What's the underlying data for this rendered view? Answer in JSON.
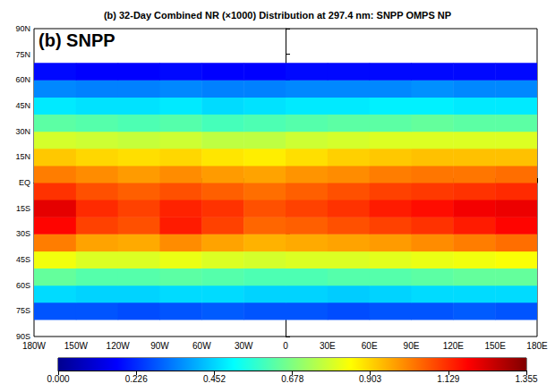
{
  "chart_data": {
    "type": "map_heatmap",
    "title": "(b) 32-Day Combined NR (×1000) Distribution at 297.4 nm: SNPP OMPS NP",
    "panel_label": "(b) SNPP",
    "xlim": [
      -180,
      180
    ],
    "xticks": [
      {
        "value": -180,
        "label": "180W"
      },
      {
        "value": -150,
        "label": "150W"
      },
      {
        "value": -120,
        "label": "120W"
      },
      {
        "value": -90,
        "label": "90W"
      },
      {
        "value": -60,
        "label": "60W"
      },
      {
        "value": -30,
        "label": "30W"
      },
      0,
      {
        "value": 30,
        "label": "30E"
      },
      {
        "value": 60,
        "label": "60E"
      },
      {
        "value": 90,
        "label": "90E"
      },
      {
        "value": 120,
        "label": "120E"
      },
      {
        "value": 150,
        "label": "150E"
      },
      {
        "value": 180,
        "label": "180E"
      }
    ],
    "ylim": [
      -90,
      90
    ],
    "yticks": [
      {
        "value": -90,
        "label": "90S"
      },
      {
        "value": -75,
        "label": "75S"
      },
      {
        "value": -60,
        "label": "60S"
      },
      {
        "value": -45,
        "label": "45S"
      },
      {
        "value": -30,
        "label": "30S"
      },
      {
        "value": -15,
        "label": "15S"
      },
      {
        "value": 0,
        "label": "EQ"
      },
      {
        "value": 15,
        "label": "15N"
      },
      {
        "value": 30,
        "label": "30N"
      },
      {
        "value": 45,
        "label": "45N"
      },
      {
        "value": 60,
        "label": "60N"
      },
      {
        "value": 75,
        "label": "75N"
      },
      {
        "value": 90,
        "label": "90N"
      }
    ],
    "cell_lon": [
      -165,
      -135,
      -105,
      -75,
      -45,
      -15,
      15,
      45,
      75,
      105,
      135,
      165
    ],
    "cell_lat": [
      -75,
      -65,
      -55,
      -45,
      -35,
      -25,
      -15,
      -5,
      5,
      15,
      25,
      35,
      45,
      55,
      65
    ],
    "cells": [
      [
        0.28,
        0.28,
        0.27,
        0.28,
        0.29,
        0.28,
        0.28,
        0.27,
        0.28,
        0.28,
        0.29,
        0.28
      ],
      [
        0.46,
        0.45,
        0.45,
        0.46,
        0.46,
        0.45,
        0.45,
        0.44,
        0.45,
        0.46,
        0.46,
        0.46
      ],
      [
        0.64,
        0.62,
        0.62,
        0.63,
        0.62,
        0.61,
        0.61,
        0.62,
        0.62,
        0.63,
        0.64,
        0.64
      ],
      [
        0.83,
        0.8,
        0.8,
        0.82,
        0.8,
        0.79,
        0.8,
        0.8,
        0.81,
        0.82,
        0.83,
        0.84
      ],
      [
        1.02,
        0.97,
        0.96,
        1.0,
        0.97,
        0.95,
        0.96,
        0.97,
        0.98,
        1.0,
        1.02,
        1.04
      ],
      [
        1.18,
        1.1,
        1.08,
        1.15,
        1.1,
        1.05,
        1.06,
        1.08,
        1.1,
        1.12,
        1.15,
        1.18
      ],
      [
        1.22,
        1.13,
        1.1,
        1.14,
        1.12,
        1.08,
        1.1,
        1.12,
        1.15,
        1.17,
        1.2,
        1.21
      ],
      [
        1.12,
        1.08,
        1.06,
        1.08,
        1.06,
        1.04,
        1.06,
        1.08,
        1.1,
        1.11,
        1.12,
        1.13
      ],
      [
        1.02,
        1.0,
        0.98,
        1.0,
        0.98,
        0.97,
        0.99,
        1.0,
        1.02,
        1.03,
        1.03,
        1.04
      ],
      [
        0.92,
        0.9,
        0.89,
        0.9,
        0.88,
        0.87,
        0.89,
        0.91,
        0.92,
        0.93,
        0.93,
        0.93
      ],
      [
        0.79,
        0.78,
        0.77,
        0.78,
        0.76,
        0.76,
        0.78,
        0.79,
        0.8,
        0.8,
        0.8,
        0.8
      ],
      [
        0.63,
        0.62,
        0.61,
        0.62,
        0.6,
        0.61,
        0.62,
        0.63,
        0.63,
        0.64,
        0.63,
        0.63
      ],
      [
        0.48,
        0.47,
        0.47,
        0.48,
        0.46,
        0.47,
        0.48,
        0.48,
        0.49,
        0.49,
        0.48,
        0.48
      ],
      [
        0.35,
        0.34,
        0.34,
        0.35,
        0.34,
        0.34,
        0.35,
        0.35,
        0.35,
        0.36,
        0.35,
        0.35
      ],
      [
        0.18,
        0.17,
        0.17,
        0.18,
        0.17,
        0.17,
        0.18,
        0.18,
        0.18,
        0.18,
        0.18,
        0.18
      ]
    ],
    "colorbar": {
      "range": [
        0,
        1.355
      ],
      "ticks": [
        {
          "value": 0,
          "label": "0.000"
        },
        0.226,
        0.452,
        0.678,
        0.903,
        1.129,
        1.355
      ]
    }
  }
}
